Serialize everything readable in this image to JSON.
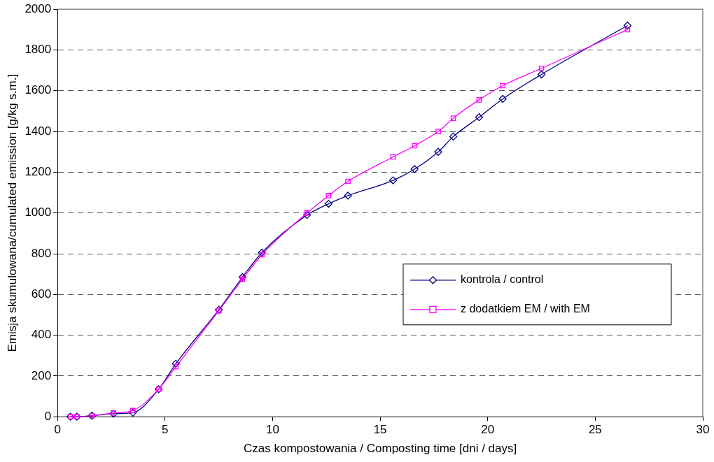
{
  "chart_data": {
    "type": "line",
    "xlabel": "Czas kompostowania / Composting time [dni / days]",
    "ylabel": "Emisja skumulowana/cumulated emission [g/kg s.m.]",
    "x": [
      0.6,
      0.9,
      1.6,
      2.6,
      3.5,
      4.7,
      5.5,
      7.5,
      8.6,
      9.5,
      11.6,
      12.6,
      13.5,
      15.6,
      16.6,
      17.7,
      18.4,
      19.6,
      20.7,
      22.5,
      26.5
    ],
    "series": [
      {
        "name": "kontrola / control",
        "color": "#000080",
        "marker": "diamond",
        "values": [
          0,
          0,
          5,
          15,
          20,
          135,
          260,
          525,
          685,
          805,
          990,
          1045,
          1085,
          1160,
          1215,
          1300,
          1375,
          1470,
          1560,
          1680,
          1920
        ]
      },
      {
        "name": "z dodatkiem EM / with EM",
        "color": "#ff00ff",
        "marker": "square",
        "values": [
          0,
          0,
          5,
          18,
          30,
          135,
          245,
          520,
          675,
          795,
          1000,
          1085,
          1155,
          1275,
          1330,
          1400,
          1465,
          1555,
          1625,
          1710,
          1900
        ]
      }
    ],
    "xlim": [
      0,
      30
    ],
    "xticks": [
      0,
      5,
      10,
      15,
      20,
      25,
      30
    ],
    "ylim": [
      0,
      2000
    ],
    "yticks": [
      0,
      200,
      400,
      600,
      800,
      1000,
      1200,
      1400,
      1600,
      1800,
      2000
    ],
    "grid": "y",
    "legend": "right",
    "line_style": "solid"
  }
}
